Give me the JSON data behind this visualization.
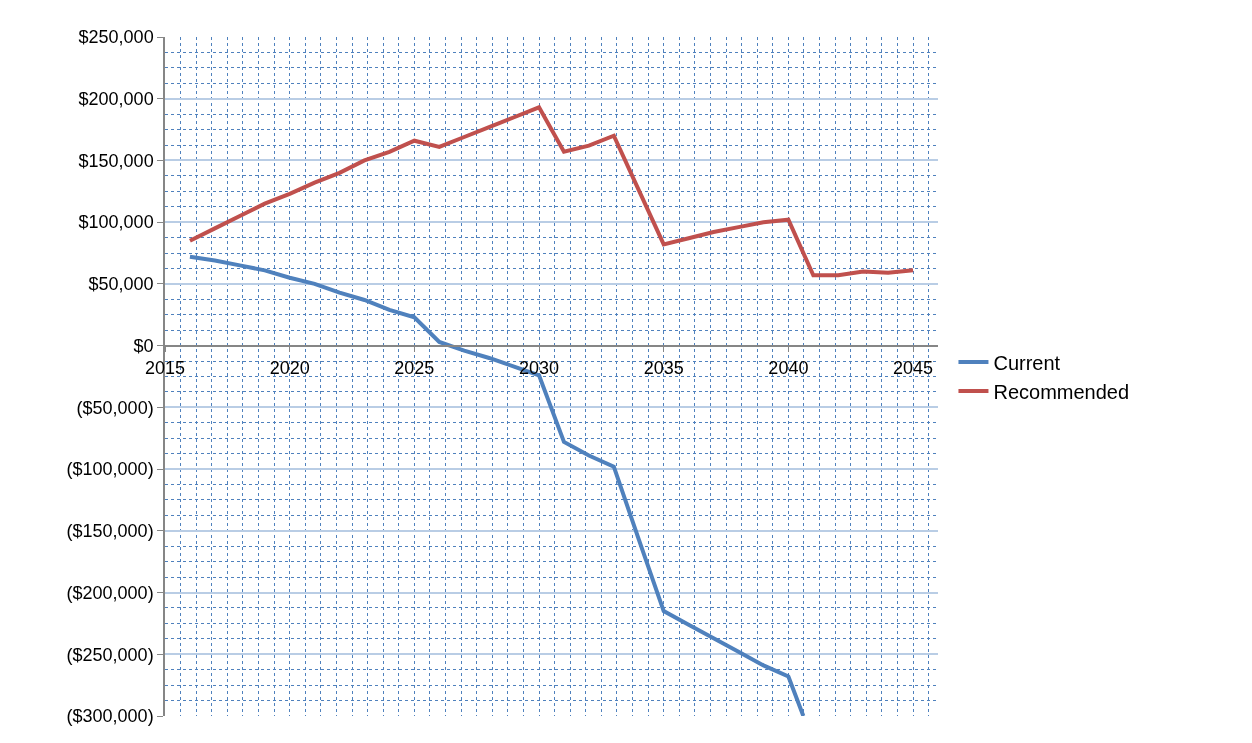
{
  "chart_data": {
    "type": "line",
    "xlim": [
      2015,
      2046
    ],
    "xticks": [
      2015,
      2020,
      2025,
      2030,
      2035,
      2040,
      2045
    ],
    "ylim": [
      -300000,
      250000
    ],
    "yticks": [
      {
        "value": 250000,
        "label": "$250,000"
      },
      {
        "value": 200000,
        "label": "$200,000"
      },
      {
        "value": 150000,
        "label": "$150,000"
      },
      {
        "value": 100000,
        "label": "$100,000"
      },
      {
        "value": 50000,
        "label": "$50,000"
      },
      {
        "value": 0,
        "label": "$0"
      },
      {
        "value": -50000,
        "label": "($50,000)"
      },
      {
        "value": -100000,
        "label": "($100,000)"
      },
      {
        "value": -150000,
        "label": "($150,000)"
      },
      {
        "value": -200000,
        "label": "($200,000)"
      },
      {
        "value": -250000,
        "label": "($250,000)"
      },
      {
        "value": -300000,
        "label": "($300,000)"
      }
    ],
    "grid": true,
    "legend": "right",
    "marker": "none",
    "line_style": "solid",
    "series": [
      {
        "name": "Current",
        "color": "#4f81bd",
        "x": [
          2016,
          2017,
          2018,
          2019,
          2020,
          2021,
          2022,
          2023,
          2024,
          2025,
          2026,
          2027,
          2028,
          2029,
          2030,
          2031,
          2032,
          2033,
          2034,
          2035,
          2036,
          2037,
          2038,
          2039,
          2040,
          2040.6
        ],
        "values": [
          72000,
          69000,
          65000,
          61000,
          55000,
          50000,
          43000,
          37000,
          29000,
          23000,
          3000,
          -4000,
          -10000,
          -17000,
          -24000,
          -78000,
          -89000,
          -98000,
          -157000,
          -215000,
          -226000,
          -237000,
          -248000,
          -259000,
          -268000,
          -300000
        ]
      },
      {
        "name": "Recommended",
        "color": "#c0504d",
        "x": [
          2016,
          2017,
          2018,
          2019,
          2020,
          2021,
          2022,
          2023,
          2024,
          2025,
          2026,
          2027,
          2028,
          2029,
          2030,
          2031,
          2032,
          2033,
          2034,
          2035,
          2036,
          2037,
          2038,
          2039,
          2040,
          2041,
          2042,
          2043,
          2044,
          2045
        ],
        "values": [
          85000,
          95000,
          105000,
          115000,
          123000,
          132000,
          140000,
          150000,
          157000,
          166000,
          161000,
          169000,
          177000,
          185000,
          193000,
          157000,
          162000,
          170000,
          126000,
          82000,
          87000,
          92000,
          96000,
          100000,
          102000,
          57000,
          57000,
          60000,
          59000,
          61000
        ]
      }
    ]
  }
}
